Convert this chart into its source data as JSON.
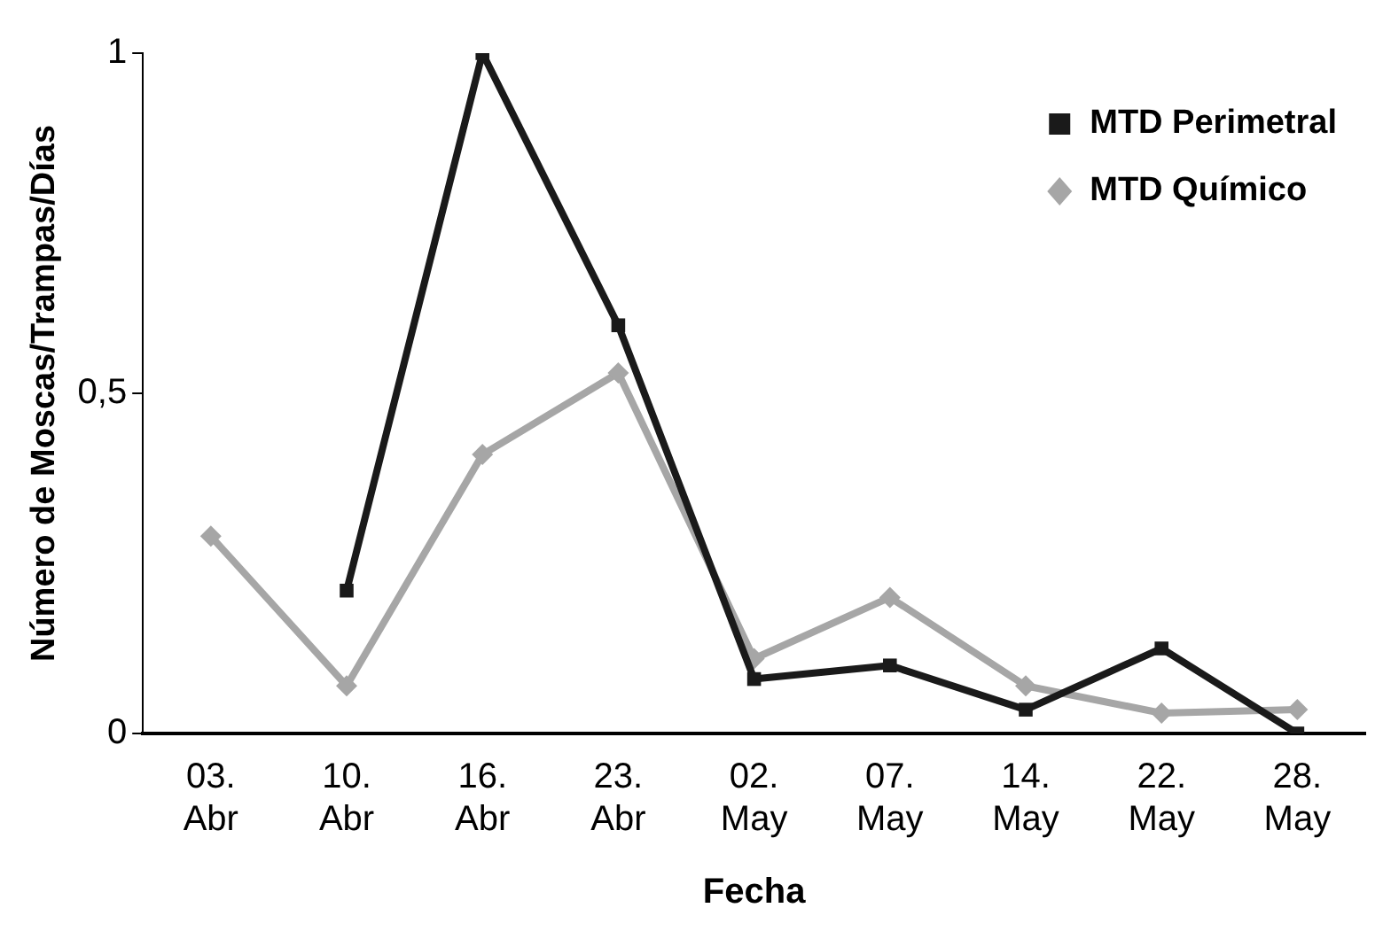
{
  "chart_data": {
    "type": "line",
    "xlabel": "Fecha",
    "ylabel": "Número de Moscas/Trampas/Días",
    "categories": [
      "03.\nAbr",
      "10.\nAbr",
      "16.\nAbr",
      "23.\nAbr",
      "02.\nMay",
      "07.\nMay",
      "14.\nMay",
      "22.\nMay",
      "28.\nMay"
    ],
    "series": [
      {
        "name": "MTD Perimetral",
        "color": "#1a1a1a",
        "marker": "square",
        "values": [
          null,
          0.21,
          1,
          0.6,
          0.08,
          0.1,
          0.035,
          0.125,
          0
        ]
      },
      {
        "name": "MTD Químico",
        "color": "#a6a6a6",
        "marker": "diamond",
        "values": [
          0.29,
          0.07,
          0.41,
          0.53,
          0.11,
          0.2,
          0.07,
          0.03,
          0.035
        ]
      }
    ],
    "ylim": [
      0,
      1
    ],
    "yticks": [
      0,
      {
        "value": 0.5,
        "label": "0,5"
      },
      1
    ],
    "grid": false,
    "legend": "top right",
    "line_style": "solid"
  }
}
